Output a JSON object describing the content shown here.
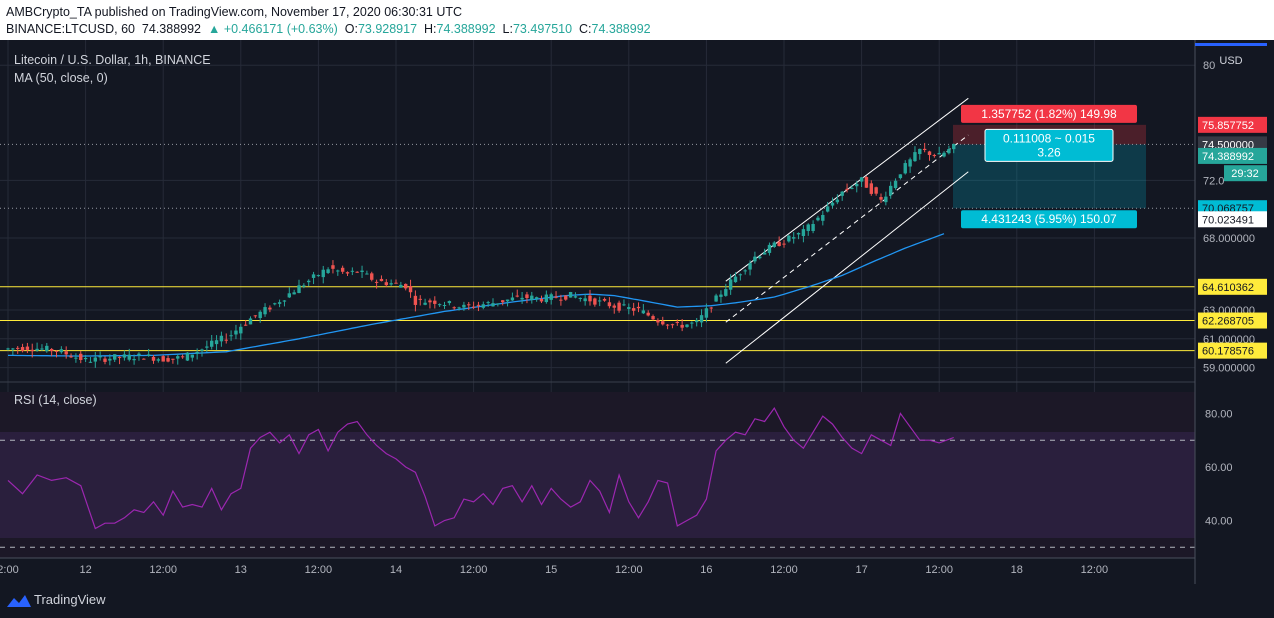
{
  "header": {
    "publisher_line": "AMBCrypto_TA published on TradingView.com, November 17, 2020 06:30:31 UTC",
    "symbol": "BINANCE:LTCUSD, 60",
    "last": "74.388992",
    "change": "▲ +0.466171 (+0.63%)",
    "o_label": "O:",
    "o_value": "73.928917",
    "h_label": "H:",
    "h_value": "74.388992",
    "l_label": "L:",
    "l_value": "73.497510",
    "c_label": "C:",
    "c_value": "74.388992"
  },
  "legend": {
    "title": "Litecoin / U.S. Dollar, 1h, BINANCE",
    "ma": "MA (50, close, 0)",
    "rsi": "RSI (14, close)"
  },
  "currency": "USD",
  "footer": {
    "brand": "TradingView"
  },
  "colors": {
    "background": "#131722",
    "up": "#26a69a",
    "down": "#ef5350",
    "ma": "#2196f3",
    "rsi_line": "#9c27b0",
    "support": "#ffeb3b",
    "channel": "#ffffff",
    "target": "#f23645",
    "stop": "#00bcd4"
  },
  "chart_data": [
    {
      "type": "candlestick",
      "title": "Litecoin / U.S. Dollar, 1h, BINANCE",
      "x_tick_labels": [
        "2:00",
        "12",
        "12:00",
        "13",
        "12:00",
        "14",
        "12:00",
        "15",
        "12:00",
        "16",
        "12:00",
        "17",
        "12:00",
        "18",
        "12:00"
      ],
      "y_axis_labels": [
        "80",
        "72.0",
        "68.000000",
        "63.000000",
        "61.000000",
        "59.000000"
      ],
      "ylim": [
        58,
        80.5
      ],
      "price_path": {
        "times": [
          0,
          4,
          10,
          16,
          22,
          28,
          32,
          36,
          40,
          46,
          48,
          50,
          54,
          60,
          66,
          70,
          72,
          76,
          82,
          84,
          88,
          94,
          100,
          106,
          110,
          116,
          120,
          126,
          130,
          134,
          138,
          142,
          148,
          152,
          154,
          158,
          164,
          168,
          172,
          176,
          180,
          184,
          188,
          192,
          195
        ],
        "prices": [
          60.3,
          60.4,
          60.2,
          59.5,
          59.7,
          59.8,
          59.6,
          59.7,
          60.3,
          61.3,
          61.9,
          62.4,
          63.2,
          64.6,
          65.9,
          65.5,
          65.7,
          65.0,
          64.7,
          63.6,
          63.6,
          63.2,
          63.5,
          63.9,
          63.8,
          64.0,
          63.7,
          63.2,
          63.0,
          62.3,
          61.9,
          62.1,
          64.6,
          66.0,
          66.7,
          67.5,
          68.4,
          69.7,
          71.2,
          72.0,
          70.6,
          72.6,
          74.1,
          73.7,
          74.3
        ]
      },
      "moving_average": {
        "name": "MA (50, close, 0)",
        "times": [
          0,
          15,
          30,
          45,
          60,
          75,
          90,
          105,
          115,
          120,
          125,
          130,
          138,
          145,
          150,
          158,
          165,
          172,
          178,
          185,
          193
        ],
        "values": [
          59.85,
          59.8,
          59.85,
          60.1,
          61.0,
          62.0,
          62.9,
          63.6,
          64.0,
          64.1,
          64.0,
          63.7,
          63.2,
          63.3,
          63.5,
          63.9,
          64.6,
          65.4,
          66.3,
          67.3,
          68.3
        ]
      },
      "support_levels": [
        "64.610362",
        "62.268705",
        "60.178576"
      ],
      "price_labels": [
        "75.857752",
        "74.500000",
        "74.388992",
        "29:32",
        "70.068757",
        "70.023491",
        "64.610362",
        "62.268705",
        "60.178576"
      ],
      "trade_box": {
        "target_label": "1.357752 (1.82%) 149.98",
        "ratio_label": "0.111008 ~ 0.015",
        "rr_label": "3.26",
        "stop_label": "4.431243 (5.95%) 150.07"
      },
      "ascending_channel": {
        "upper": [
          [
            148,
            65.0
          ],
          [
            198,
            77.7
          ]
        ],
        "lower": [
          [
            148,
            59.3
          ],
          [
            198,
            72.6
          ]
        ]
      }
    },
    {
      "type": "line",
      "title": "RSI (14, close)",
      "y_axis_labels": [
        "80.00",
        "60.00",
        "40.00"
      ],
      "ylim": [
        26,
        88
      ],
      "bands": [
        30,
        70
      ],
      "series": [
        {
          "name": "RSI (14, close)",
          "times": [
            0,
            3,
            6,
            9,
            12,
            15,
            18,
            20,
            22,
            24,
            26,
            28,
            30,
            32,
            34,
            36,
            38,
            40,
            42,
            44,
            46,
            48,
            50,
            52,
            54,
            56,
            58,
            60,
            62,
            64,
            66,
            68,
            70,
            72,
            74,
            76,
            78,
            80,
            82,
            84,
            86,
            88,
            90,
            92,
            94,
            96,
            98,
            100,
            102,
            104,
            106,
            108,
            110,
            112,
            114,
            116,
            118,
            120,
            122,
            124,
            126,
            128,
            130,
            132,
            134,
            136,
            138,
            140,
            142,
            144,
            146,
            148,
            150,
            152,
            154,
            156,
            158,
            160,
            162,
            164,
            166,
            168,
            170,
            172,
            174,
            176,
            178,
            180,
            182,
            184,
            186,
            188,
            190,
            192,
            195
          ],
          "values": [
            55,
            50,
            57,
            55,
            56,
            53,
            37,
            39,
            39,
            41,
            44,
            43,
            47,
            42,
            51,
            45,
            46,
            45,
            52,
            44,
            50,
            52,
            67,
            71,
            73,
            69,
            72,
            65,
            72,
            74,
            66,
            73,
            76,
            77,
            72,
            68,
            65,
            63,
            60,
            58,
            49,
            38,
            40,
            41,
            48,
            47,
            50,
            46,
            52,
            53,
            47,
            53,
            46,
            52,
            48,
            45,
            47,
            55,
            51,
            43,
            57,
            47,
            41,
            47,
            55,
            54,
            38,
            40,
            42,
            48,
            66,
            70,
            73,
            72,
            78,
            77,
            82,
            75,
            70,
            67,
            73,
            79,
            76,
            71,
            67,
            65,
            72,
            70,
            68,
            80,
            75,
            70,
            70,
            69,
            71
          ]
        }
      ]
    }
  ]
}
